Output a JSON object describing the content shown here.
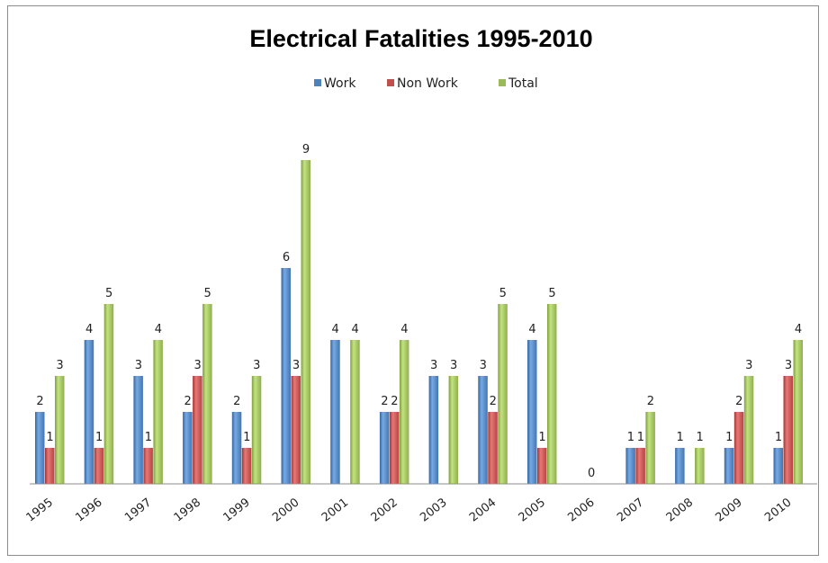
{
  "chart_data": {
    "type": "bar",
    "title": "Electrical Fatalities 1995-2010",
    "categories": [
      "1995",
      "1996",
      "1997",
      "1998",
      "1999",
      "2000",
      "2001",
      "2002",
      "2003",
      "2004",
      "2005",
      "2006",
      "2007",
      "2008",
      "2009",
      "2010"
    ],
    "series": [
      {
        "name": "Work",
        "color": "#4f81bd",
        "values": [
          2,
          4,
          3,
          2,
          2,
          6,
          4,
          2,
          3,
          3,
          4,
          0,
          1,
          1,
          1,
          1
        ]
      },
      {
        "name": "Non Work",
        "color": "#c0504d",
        "values": [
          1,
          1,
          1,
          3,
          1,
          3,
          0,
          2,
          0,
          2,
          1,
          0,
          1,
          0,
          2,
          3
        ]
      },
      {
        "name": "Total",
        "color": "#9bbb59",
        "values": [
          3,
          5,
          4,
          5,
          3,
          9,
          4,
          4,
          3,
          5,
          5,
          0,
          2,
          1,
          3,
          4
        ]
      }
    ],
    "data_labels": [
      [
        "2",
        "1",
        "3"
      ],
      [
        "4",
        "1",
        "5"
      ],
      [
        "3",
        "1",
        "4"
      ],
      [
        "2",
        "3",
        "5"
      ],
      [
        "2",
        "1",
        "3"
      ],
      [
        "6",
        "3",
        "9"
      ],
      [
        "4",
        "",
        "4"
      ],
      [
        "2",
        "2",
        "4"
      ],
      [
        "3",
        "",
        "3"
      ],
      [
        "3",
        "2",
        "5"
      ],
      [
        "4",
        "1",
        "5"
      ],
      [
        "",
        "0",
        ""
      ],
      [
        "1",
        "1",
        "2"
      ],
      [
        "1",
        "",
        "1"
      ],
      [
        "1",
        "2",
        "3"
      ],
      [
        "1",
        "3",
        "4"
      ]
    ],
    "ylim": [
      0,
      9
    ],
    "grid": false,
    "legend_position": "top"
  }
}
